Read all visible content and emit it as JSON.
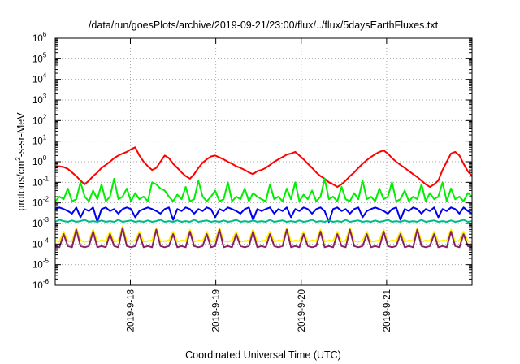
{
  "chart_data": {
    "type": "line",
    "title": "/data/run/goesPlots/archive/2019-09-21/23:00/flux/../flux/5daysEarthFluxes.txt",
    "xlabel": "Coordinated Universal Time (UTC)",
    "ylabel": {
      "prefix": "protons/cm",
      "sup": "2",
      "suffix": "-s-sr-MeV"
    },
    "y_scale": "log",
    "ylim": [
      1e-06,
      1000000.0
    ],
    "xlim_days": [
      -0.88,
      4.0
    ],
    "y_ticks": [
      {
        "exp": -6,
        "base": "10",
        "sup": "-6"
      },
      {
        "exp": -5,
        "base": "10",
        "sup": "-5"
      },
      {
        "exp": -4,
        "base": "10",
        "sup": "-4"
      },
      {
        "exp": -3,
        "base": "10",
        "sup": "-3"
      },
      {
        "exp": -2,
        "base": "10",
        "sup": "-2"
      },
      {
        "exp": -1,
        "base": "10",
        "sup": "-1"
      },
      {
        "exp": 0,
        "base": "10",
        "sup": "0"
      },
      {
        "exp": 1,
        "base": "10",
        "sup": "1"
      },
      {
        "exp": 2,
        "base": "10",
        "sup": "2"
      },
      {
        "exp": 3,
        "base": "10",
        "sup": "3"
      },
      {
        "exp": 4,
        "base": "10",
        "sup": "4"
      },
      {
        "exp": 5,
        "base": "10",
        "sup": "5"
      },
      {
        "exp": 6,
        "base": "10",
        "sup": "6"
      }
    ],
    "x_ticks": [
      {
        "day": 0,
        "label": "2019-9-18"
      },
      {
        "day": 1,
        "label": "2019-9-19"
      },
      {
        "day": 2,
        "label": "2019-9-20"
      },
      {
        "day": 3,
        "label": "2019-9-21"
      }
    ],
    "grid": true,
    "legend": "none",
    "series": [
      {
        "color": "#ff0000",
        "values": [
          0.5,
          0.6,
          0.55,
          0.45,
          0.3,
          0.2,
          0.12,
          0.08,
          0.12,
          0.2,
          0.3,
          0.5,
          0.7,
          1.0,
          1.5,
          2.0,
          2.5,
          3.0,
          4.0,
          5.0,
          2.0,
          1.0,
          0.6,
          0.4,
          0.5,
          1.0,
          2.0,
          1.5,
          0.8,
          0.5,
          0.3,
          0.2,
          0.15,
          0.25,
          0.5,
          0.9,
          1.3,
          1.8,
          2.0,
          1.6,
          1.3,
          1.0,
          0.8,
          0.6,
          0.5,
          0.4,
          0.3,
          0.25,
          0.35,
          0.4,
          0.5,
          0.7,
          1.0,
          1.3,
          1.7,
          2.2,
          2.5,
          3.0,
          2.0,
          1.3,
          0.8,
          0.5,
          0.3,
          0.2,
          0.15,
          0.1,
          0.08,
          0.06,
          0.08,
          0.12,
          0.2,
          0.3,
          0.5,
          0.8,
          1.2,
          1.7,
          2.3,
          3.0,
          3.5,
          2.5,
          1.5,
          1.0,
          0.7,
          0.5,
          0.35,
          0.25,
          0.18,
          0.12,
          0.08,
          0.06,
          0.08,
          0.12,
          0.4,
          1.0,
          2.5,
          3.0,
          2.0,
          0.8,
          0.35,
          0.2
        ]
      },
      {
        "color": "#00ee00",
        "values": [
          0.012,
          0.02,
          0.015,
          0.05,
          0.012,
          0.015,
          0.1,
          0.02,
          0.012,
          0.04,
          0.015,
          0.08,
          0.012,
          0.02,
          0.15,
          0.015,
          0.02,
          0.05,
          0.012,
          0.03,
          0.015,
          0.02,
          0.012,
          0.1,
          0.08,
          0.05,
          0.04,
          0.02,
          0.012,
          0.025,
          0.015,
          0.06,
          0.012,
          0.015,
          0.12,
          0.02,
          0.012,
          0.02,
          0.04,
          0.012,
          0.015,
          0.1,
          0.012,
          0.02,
          0.015,
          0.05,
          0.012,
          0.03,
          0.02,
          0.015,
          0.012,
          0.08,
          0.015,
          0.02,
          0.012,
          0.05,
          0.015,
          0.1,
          0.012,
          0.025,
          0.015,
          0.04,
          0.012,
          0.02,
          0.15,
          0.015,
          0.02,
          0.012,
          0.06,
          0.015,
          0.012,
          0.03,
          0.015,
          0.12,
          0.015,
          0.02,
          0.012,
          0.05,
          0.015,
          0.02,
          0.1,
          0.012,
          0.015,
          0.04,
          0.012,
          0.02,
          0.015,
          0.08,
          0.012,
          0.03,
          0.015,
          0.02,
          0.1,
          0.012,
          0.05,
          0.015,
          0.02,
          0.012,
          0.03,
          0.02
        ]
      },
      {
        "color": "#0000ee",
        "values": [
          0.005,
          0.006,
          0.005,
          0.004,
          0.003,
          0.006,
          0.002,
          0.005,
          0.004,
          0.006,
          0.0012,
          0.005,
          0.006,
          0.004,
          0.005,
          0.003,
          0.005,
          0.006,
          0.005,
          0.002,
          0.004,
          0.005,
          0.006,
          0.005,
          0.004,
          0.003,
          0.005,
          0.006,
          0.0015,
          0.005,
          0.004,
          0.006,
          0.005,
          0.003,
          0.005,
          0.004,
          0.006,
          0.005,
          0.002,
          0.005,
          0.004,
          0.006,
          0.005,
          0.004,
          0.003,
          0.005,
          0.006,
          0.0015,
          0.005,
          0.004,
          0.005,
          0.006,
          0.003,
          0.005,
          0.004,
          0.006,
          0.002,
          0.005,
          0.004,
          0.006,
          0.005,
          0.003,
          0.005,
          0.006,
          0.004,
          0.0012,
          0.005,
          0.006,
          0.004,
          0.005,
          0.003,
          0.005,
          0.006,
          0.002,
          0.004,
          0.005,
          0.006,
          0.005,
          0.004,
          0.003,
          0.005,
          0.006,
          0.0015,
          0.005,
          0.004,
          0.006,
          0.005,
          0.003,
          0.005,
          0.004,
          0.006,
          0.002,
          0.005,
          0.004,
          0.006,
          0.005,
          0.003,
          0.006,
          0.004,
          0.003
        ]
      },
      {
        "color": "#00bb88",
        "values": [
          0.0012,
          0.0015,
          0.0013,
          0.0012,
          0.0014,
          0.0012,
          0.0013,
          0.0015,
          0.0012,
          0.0013,
          0.0012,
          0.0014,
          0.0012,
          0.0013,
          0.0012,
          0.0015,
          0.0012,
          0.0013,
          0.0014,
          0.0012,
          0.0013,
          0.0012,
          0.0014,
          0.0012,
          0.0013,
          0.0015,
          0.0012,
          0.0013,
          0.0012,
          0.0014,
          0.0012,
          0.0013,
          0.0012,
          0.0015,
          0.0012,
          0.0013,
          0.0014,
          0.0012,
          0.0013,
          0.0012,
          0.0014,
          0.0012,
          0.0013,
          0.0015,
          0.0012,
          0.0013,
          0.0012,
          0.0014,
          0.0012,
          0.0013,
          0.0012,
          0.0015,
          0.0012,
          0.0013,
          0.0014,
          0.0012,
          0.0013,
          0.0012,
          0.0014,
          0.0012,
          0.0013,
          0.0015,
          0.0012,
          0.0013,
          0.0012,
          0.0014,
          0.0012,
          0.0013,
          0.0012,
          0.0015,
          0.0012,
          0.0013,
          0.0014,
          0.0012,
          0.0013,
          0.0012,
          0.0014,
          0.0012,
          0.0013,
          0.0015,
          0.0012,
          0.0013,
          0.0012,
          0.0014,
          0.0012,
          0.0013,
          0.0012,
          0.0015,
          0.0012,
          0.0013,
          0.0014,
          0.0012,
          0.0013,
          0.0012,
          0.0014,
          0.0012,
          0.0013,
          0.0015,
          0.0012,
          0.0013
        ]
      },
      {
        "color": "#ffee00",
        "values": [
          0.00015,
          0.00013,
          0.0004,
          0.00014,
          0.00013,
          0.0006,
          0.00015,
          0.00013,
          0.00014,
          0.0005,
          0.00013,
          0.00015,
          0.00014,
          0.0004,
          0.00013,
          0.00015,
          0.0007,
          0.00014,
          0.00013,
          0.00015,
          0.0004,
          0.00013,
          0.00014,
          0.00015,
          0.0006,
          0.00013,
          0.00014,
          0.00015,
          0.0004,
          0.00013,
          0.00015,
          0.00014,
          0.0005,
          0.00013,
          0.00015,
          0.00014,
          0.0004,
          0.00013,
          0.00015,
          0.0006,
          0.00014,
          0.00013,
          0.00015,
          0.0004,
          0.00013,
          0.00014,
          0.00015,
          0.0005,
          0.00013,
          0.00014,
          0.00015,
          0.0004,
          0.00013,
          0.00015,
          0.00014,
          0.0006,
          0.00013,
          0.00015,
          0.00014,
          0.0004,
          0.00013,
          0.00015,
          0.00014,
          0.0005,
          0.00013,
          0.00015,
          0.00014,
          0.0004,
          0.00013,
          0.00015,
          0.0006,
          0.00014,
          0.00013,
          0.00015,
          0.0004,
          0.00013,
          0.00014,
          0.00015,
          0.0005,
          0.00013,
          0.00015,
          0.00014,
          0.0004,
          0.00013,
          0.00015,
          0.00014,
          0.0006,
          0.00013,
          0.00015,
          0.00014,
          0.0004,
          0.00013,
          0.00015,
          0.00014,
          0.0005,
          0.00013,
          0.00015,
          0.0004,
          0.00014,
          0.00013
        ]
      },
      {
        "color": "#882266",
        "values": [
          8e-05,
          7e-05,
          0.0003,
          8e-05,
          7e-05,
          0.0005,
          8e-05,
          7e-05,
          8e-05,
          0.0004,
          7e-05,
          8e-05,
          7e-05,
          0.0003,
          8e-05,
          7e-05,
          0.0006,
          8e-05,
          7e-05,
          8e-05,
          0.0003,
          7e-05,
          8e-05,
          7e-05,
          0.0005,
          8e-05,
          7e-05,
          8e-05,
          0.0003,
          7e-05,
          8e-05,
          7e-05,
          0.0004,
          8e-05,
          7e-05,
          8e-05,
          0.0003,
          7e-05,
          8e-05,
          0.0005,
          7e-05,
          8e-05,
          7e-05,
          0.0003,
          8e-05,
          7e-05,
          8e-05,
          0.0004,
          7e-05,
          8e-05,
          7e-05,
          0.0003,
          8e-05,
          7e-05,
          8e-05,
          0.0005,
          7e-05,
          8e-05,
          7e-05,
          0.0003,
          8e-05,
          7e-05,
          8e-05,
          0.0004,
          7e-05,
          8e-05,
          7e-05,
          0.0003,
          8e-05,
          7e-05,
          0.0005,
          8e-05,
          7e-05,
          8e-05,
          0.0003,
          7e-05,
          8e-05,
          7e-05,
          0.0004,
          8e-05,
          7e-05,
          8e-05,
          0.0003,
          7e-05,
          8e-05,
          7e-05,
          0.0005,
          8e-05,
          7e-05,
          8e-05,
          0.0003,
          7e-05,
          8e-05,
          7e-05,
          0.0004,
          8e-05,
          7e-05,
          0.0003,
          8e-05,
          7e-05
        ]
      }
    ]
  }
}
